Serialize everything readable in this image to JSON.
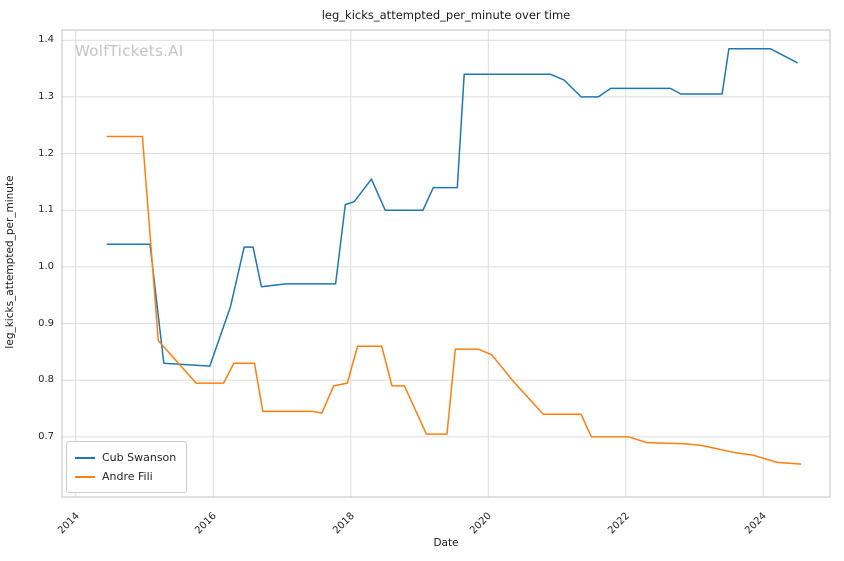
{
  "watermark": "WolfTickets.AI",
  "chart_data": {
    "type": "line",
    "title": "leg_kicks_attempted_per_minute over time",
    "xlabel": "Date",
    "ylabel": "leg_kicks_attempted_per_minute",
    "grid": true,
    "legend_position": "lower left",
    "xlim": [
      2013.8,
      2024.97
    ],
    "ylim": [
      0.594,
      1.418
    ],
    "x_ticks": [
      2014,
      2016,
      2018,
      2020,
      2022,
      2024
    ],
    "x_tick_labels": [
      "2014",
      "2016",
      "2018",
      "2020",
      "2022",
      "2024"
    ],
    "y_ticks": [
      0.7,
      0.8,
      0.9,
      1.0,
      1.1,
      1.2,
      1.3,
      1.4
    ],
    "y_tick_labels": [
      "0.7",
      "0.8",
      "0.9",
      "1.0",
      "1.1",
      "1.2",
      "1.3",
      "1.4"
    ],
    "colors": {
      "series1": "#1f77b4",
      "series2": "#ff7f0e",
      "grid": "#dddddd",
      "spine": "#cccccc"
    },
    "series": [
      {
        "name": "Cub Swanson",
        "color": "#1f77b4",
        "x": [
          2014.45,
          2015.08,
          2015.28,
          2015.95,
          2016.25,
          2016.45,
          2016.58,
          2016.7,
          2017.05,
          2017.78,
          2017.92,
          2018.05,
          2018.3,
          2018.5,
          2019.05,
          2019.2,
          2019.55,
          2019.65,
          2020.9,
          2021.1,
          2021.35,
          2021.6,
          2021.78,
          2022.65,
          2022.8,
          2023.4,
          2023.5,
          2024.1,
          2024.5
        ],
        "y": [
          1.04,
          1.04,
          0.83,
          0.825,
          0.93,
          1.035,
          1.035,
          0.965,
          0.97,
          0.97,
          1.11,
          1.115,
          1.155,
          1.1,
          1.1,
          1.14,
          1.14,
          1.34,
          1.34,
          1.33,
          1.3,
          1.3,
          1.315,
          1.315,
          1.305,
          1.305,
          1.385,
          1.385,
          1.36
        ]
      },
      {
        "name": "Andre Fili",
        "color": "#ff7f0e",
        "x": [
          2014.45,
          2014.97,
          2015.2,
          2015.75,
          2016.15,
          2016.3,
          2016.6,
          2016.72,
          2017.45,
          2017.58,
          2017.75,
          2017.95,
          2018.1,
          2018.45,
          2018.6,
          2018.78,
          2019.1,
          2019.4,
          2019.52,
          2019.85,
          2020.05,
          2020.35,
          2020.8,
          2021.35,
          2021.5,
          2022.05,
          2022.3,
          2022.85,
          2023.1,
          2023.6,
          2023.85,
          2024.2,
          2024.55
        ],
        "y": [
          1.23,
          1.23,
          0.87,
          0.795,
          0.795,
          0.83,
          0.83,
          0.745,
          0.745,
          0.742,
          0.79,
          0.795,
          0.86,
          0.86,
          0.79,
          0.79,
          0.705,
          0.705,
          0.855,
          0.855,
          0.845,
          0.8,
          0.74,
          0.74,
          0.7,
          0.7,
          0.69,
          0.688,
          0.685,
          0.672,
          0.668,
          0.655,
          0.652
        ]
      }
    ]
  }
}
